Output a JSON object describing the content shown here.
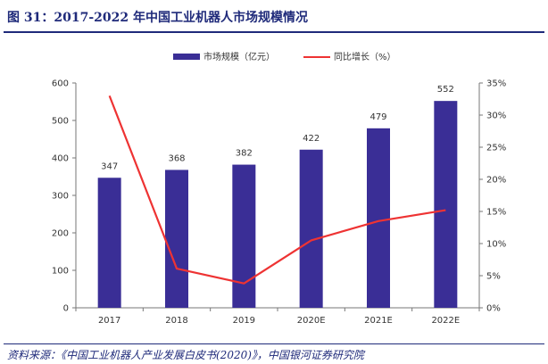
{
  "header": {
    "title": "图 31：2017-2022 年中国工业机器人市场规模情况"
  },
  "footer": {
    "source": "资料来源：《中国工业机器人产业发展白皮书(2020)》，中国银河证券研究院"
  },
  "colors": {
    "bar": "#3a2e96",
    "line": "#ee3333",
    "accent": "#1f2a7a"
  },
  "chart_data": {
    "type": "bar",
    "categories": [
      "2017",
      "2018",
      "2019",
      "2020E",
      "2021E",
      "2022E"
    ],
    "series": [
      {
        "name": "市场规模（亿元）",
        "type": "bar",
        "axis": "left",
        "values": [
          347,
          368,
          382,
          422,
          479,
          552
        ],
        "labels": [
          "347",
          "368",
          "382",
          "422",
          "479",
          "552"
        ]
      },
      {
        "name": "同比增长（%）",
        "type": "line",
        "axis": "right",
        "values": [
          33.0,
          6.1,
          3.8,
          10.5,
          13.5,
          15.2
        ]
      }
    ],
    "ylim_left": [
      0,
      600
    ],
    "yticks_left": [
      "0",
      "100",
      "200",
      "300",
      "400",
      "500",
      "600"
    ],
    "ylim_right": [
      0,
      35
    ],
    "yticks_right": [
      "0%",
      "5%",
      "10%",
      "15%",
      "20%",
      "25%",
      "30%",
      "35%"
    ],
    "legend": "top-center",
    "grid": false
  }
}
